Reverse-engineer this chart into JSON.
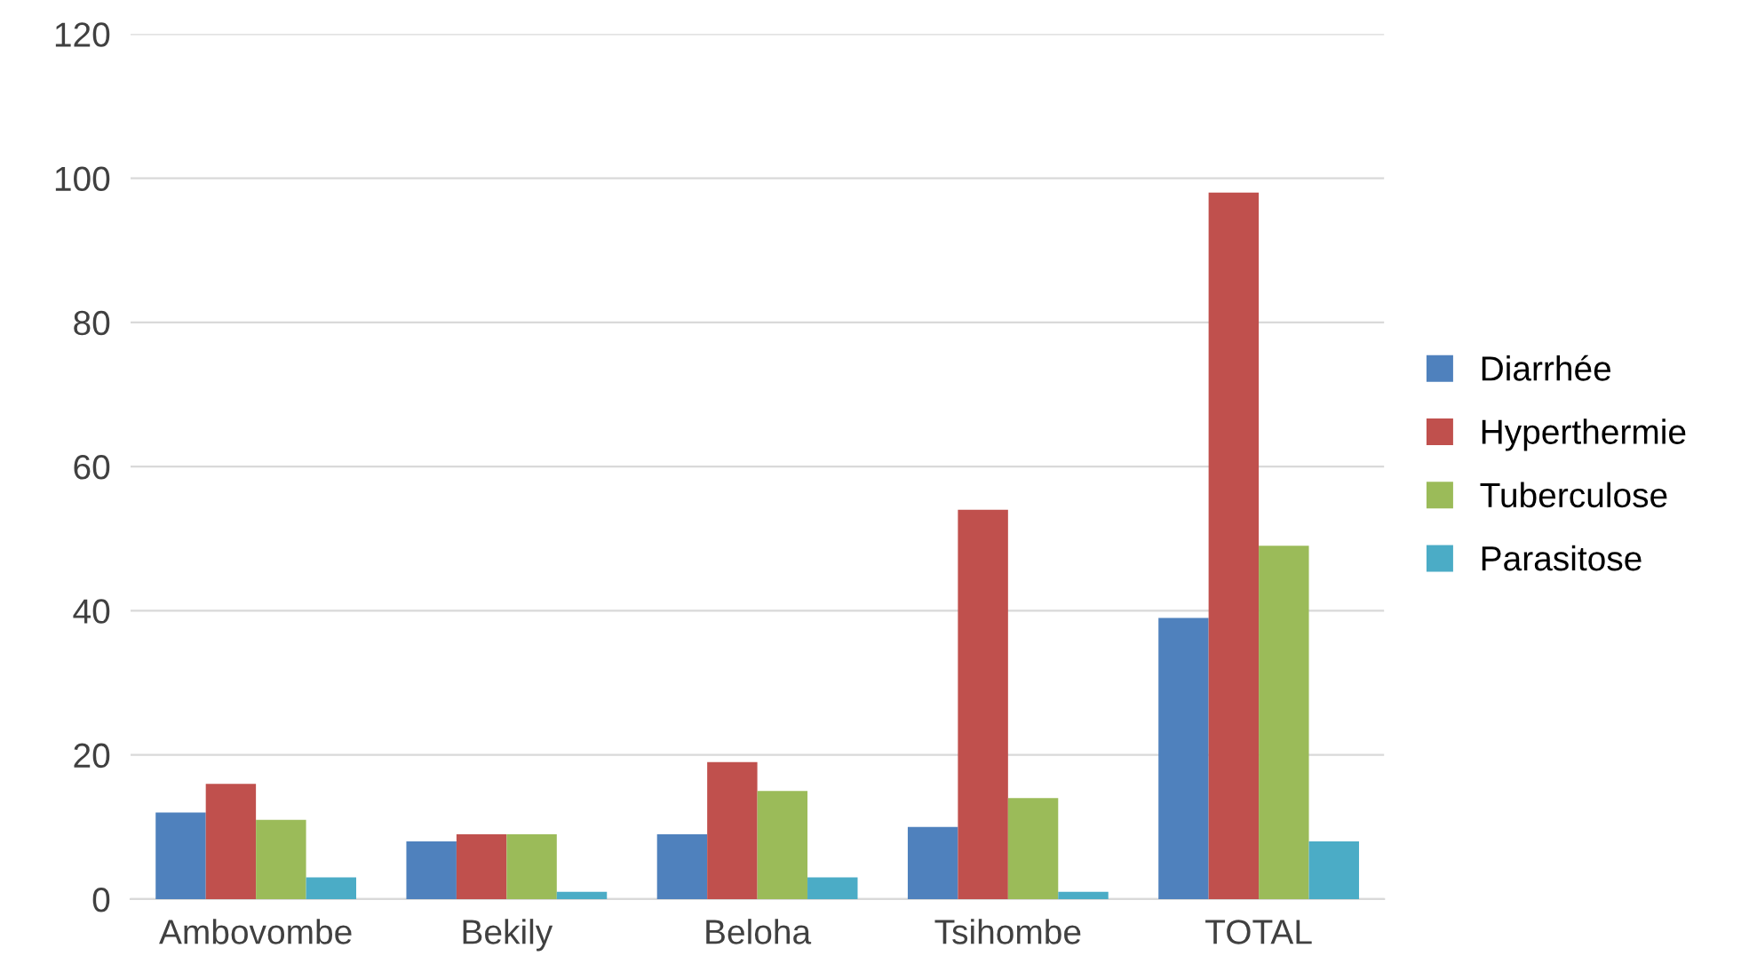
{
  "chart_data": {
    "type": "bar",
    "categories": [
      "Ambovombe",
      "Bekily",
      "Beloha",
      "Tsihombe",
      "TOTAL"
    ],
    "series": [
      {
        "name": "Diarrhée",
        "color": "#4f81bd",
        "values": [
          12,
          8,
          9,
          10,
          39
        ]
      },
      {
        "name": "Hyperthermie",
        "color": "#c0504d",
        "values": [
          16,
          9,
          19,
          54,
          98
        ]
      },
      {
        "name": "Tuberculose",
        "color": "#9bbb59",
        "values": [
          11,
          9,
          15,
          14,
          49
        ]
      },
      {
        "name": "Parasitose",
        "color": "#4bacc6",
        "values": [
          3,
          1,
          3,
          1,
          8
        ]
      }
    ],
    "ylim": [
      0,
      120
    ],
    "yticks": [
      0,
      20,
      40,
      60,
      80,
      100,
      120
    ],
    "grid": "y",
    "legend": "right"
  }
}
